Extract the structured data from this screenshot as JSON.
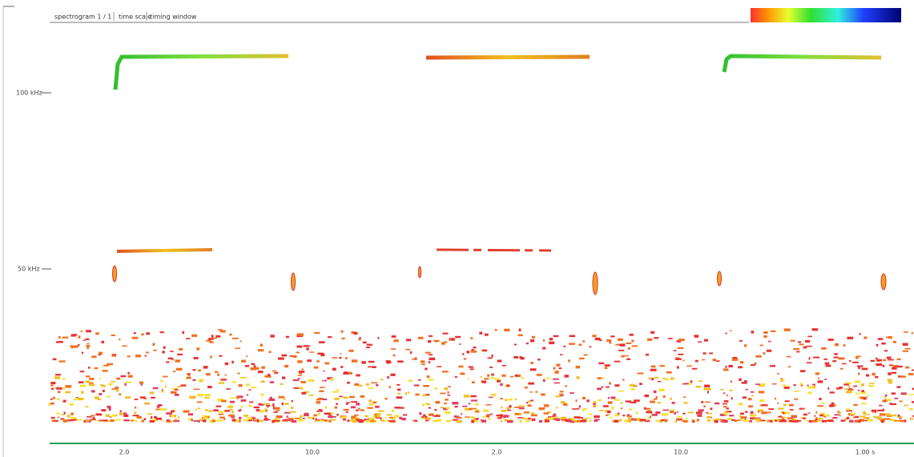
{
  "toolbar": {
    "tabs": [
      "spectrogram 1 / 1",
      "time scale",
      "timing window"
    ]
  },
  "frequency_labels": [
    "100 kHz",
    "50 kHz"
  ],
  "time_labels": [
    "2.0",
    "10.0",
    "2.0",
    "10.0",
    "1.00 s"
  ]
}
